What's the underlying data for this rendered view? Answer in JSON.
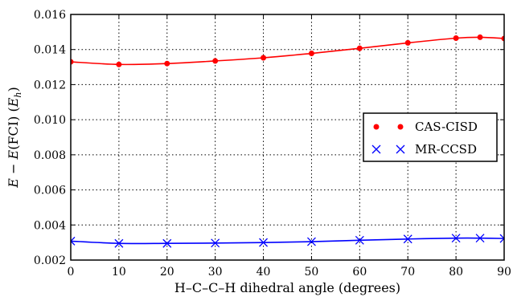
{
  "chart_data": {
    "type": "line",
    "title": "",
    "xlabel": "H–C–C–H dihedral angle (degrees)",
    "ylabel": "E − E(FCI) (E_h)",
    "ylabel_parts": {
      "e1": "E",
      "minus": " − ",
      "e2": "E",
      "fci": "(FCI) (",
      "eh_main": "E",
      "eh_sub": "h",
      "close": ")"
    },
    "xlim": [
      0,
      90
    ],
    "ylim": [
      0.002,
      0.016
    ],
    "xticks": [
      0,
      10,
      20,
      30,
      40,
      50,
      60,
      70,
      80,
      90
    ],
    "xtick_labels": [
      "0",
      "10",
      "20",
      "30",
      "40",
      "50",
      "60",
      "70",
      "80",
      "90"
    ],
    "yticks": [
      0.002,
      0.004,
      0.006,
      0.008,
      0.01,
      0.012,
      0.014,
      0.016
    ],
    "ytick_labels": [
      "0.002",
      "0.004",
      "0.006",
      "0.008",
      "0.010",
      "0.012",
      "0.014",
      "0.016"
    ],
    "grid": true,
    "legend_position": "center-right",
    "series": [
      {
        "name": "CAS-CISD",
        "color": "#ff0000",
        "marker": "dot",
        "x": [
          0,
          10,
          20,
          30,
          40,
          50,
          60,
          70,
          80,
          85,
          90
        ],
        "y": [
          0.0133,
          0.01315,
          0.0132,
          0.01335,
          0.01353,
          0.01378,
          0.01407,
          0.01438,
          0.01465,
          0.0147,
          0.01463
        ]
      },
      {
        "name": "MR-CCSD",
        "color": "#0000ff",
        "marker": "x",
        "x": [
          0,
          10,
          20,
          30,
          40,
          50,
          60,
          70,
          80,
          85,
          90
        ],
        "y": [
          0.00308,
          0.00295,
          0.00295,
          0.00297,
          0.003,
          0.00305,
          0.00313,
          0.0032,
          0.00325,
          0.00325,
          0.00323
        ]
      }
    ]
  }
}
